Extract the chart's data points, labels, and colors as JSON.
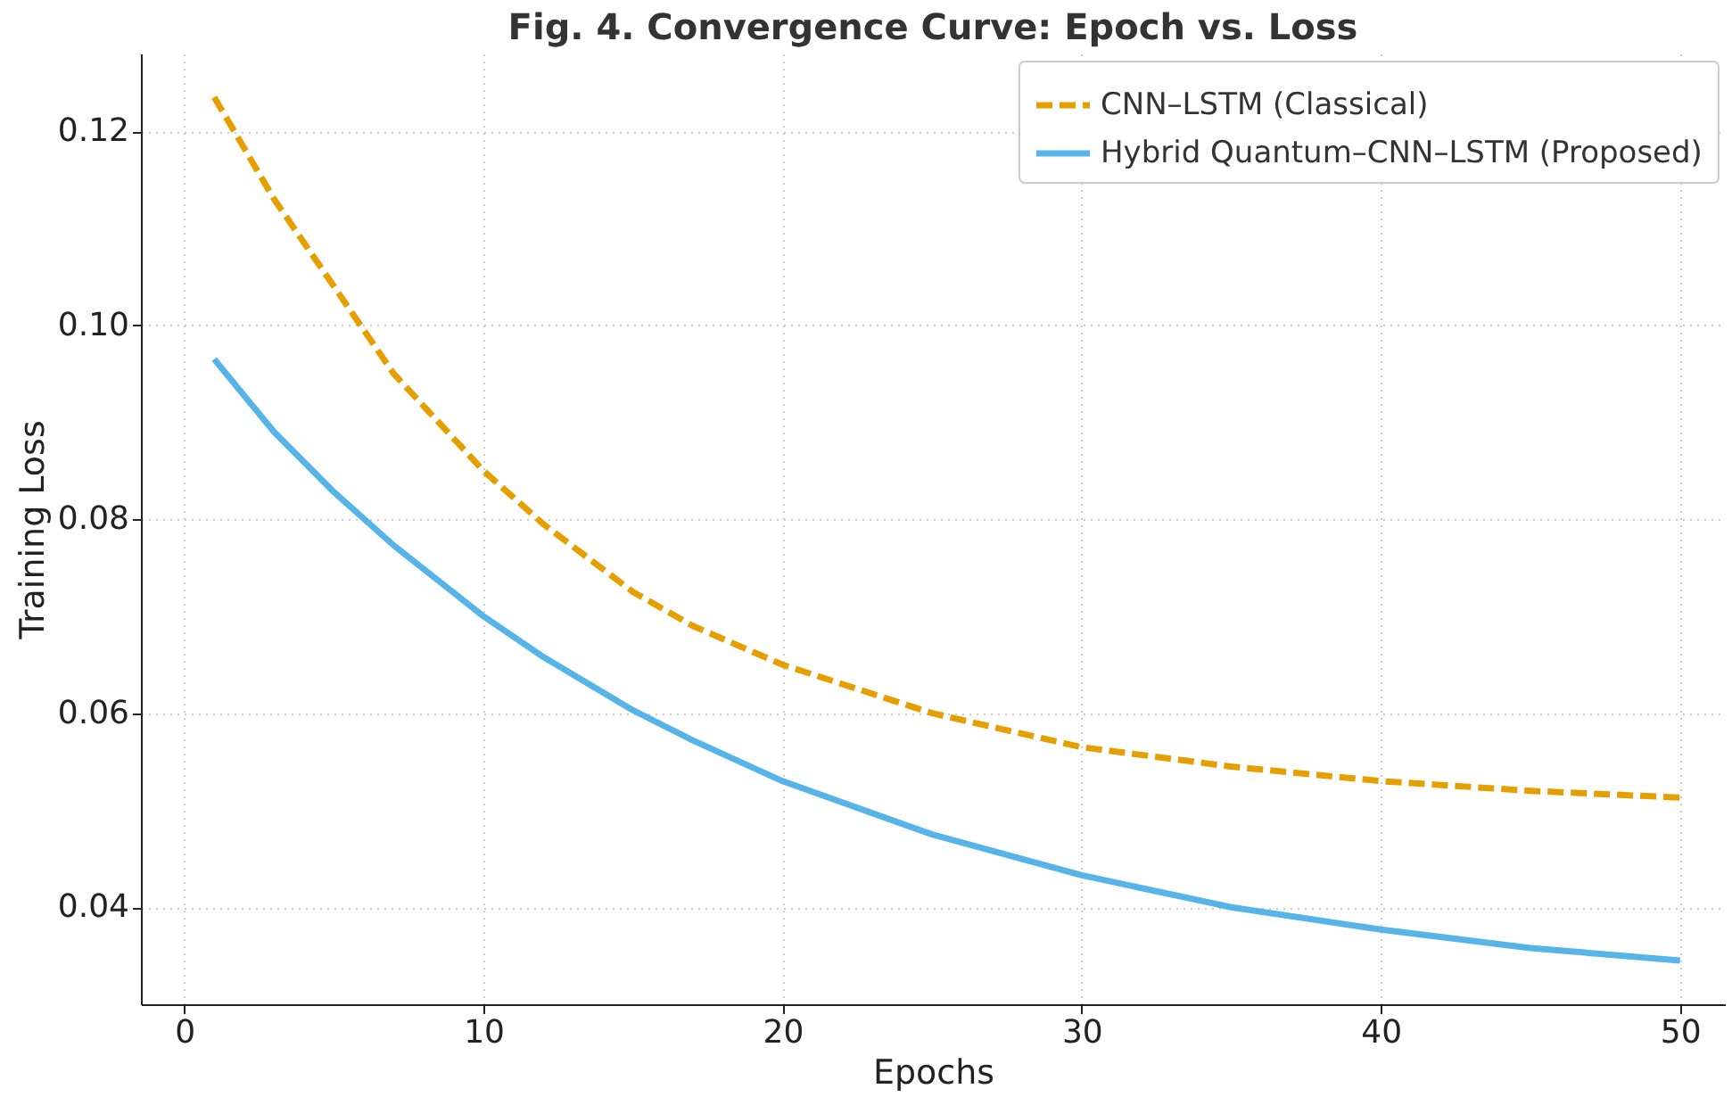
{
  "chart_data": {
    "type": "line",
    "title": "Fig. 4. Convergence Curve: Epoch vs. Loss",
    "xlabel": "Epochs",
    "ylabel": "Training Loss",
    "x": [
      1,
      3,
      5,
      7,
      10,
      12,
      15,
      17,
      20,
      25,
      30,
      35,
      40,
      45,
      50
    ],
    "series": [
      {
        "name": "CNN–LSTM (Classical)",
        "color": "#e69f00",
        "line_style": "dashed",
        "values": [
          0.1235,
          0.113,
          0.104,
          0.095,
          0.085,
          0.0795,
          0.0725,
          0.069,
          0.065,
          0.06,
          0.0565,
          0.0545,
          0.053,
          0.052,
          0.0513
        ]
      },
      {
        "name": "Hybrid Quantum–CNN–LSTM (Proposed)",
        "color": "#56b4e9",
        "line_style": "solid",
        "values": [
          0.0965,
          0.089,
          0.0828,
          0.0773,
          0.07,
          0.0658,
          0.0603,
          0.0572,
          0.053,
          0.0475,
          0.0433,
          0.04,
          0.0377,
          0.0358,
          0.0345
        ]
      }
    ],
    "xlim": [
      -1.45,
      51.5
    ],
    "xticks": [
      0,
      10,
      20,
      30,
      40,
      50
    ],
    "ylim": [
      0.03,
      0.128
    ],
    "yticks": [
      0.04,
      0.06,
      0.08,
      {
        "value": 0.1,
        "label": "0.10"
      },
      0.12
    ],
    "grid": true,
    "legend": "top right"
  }
}
